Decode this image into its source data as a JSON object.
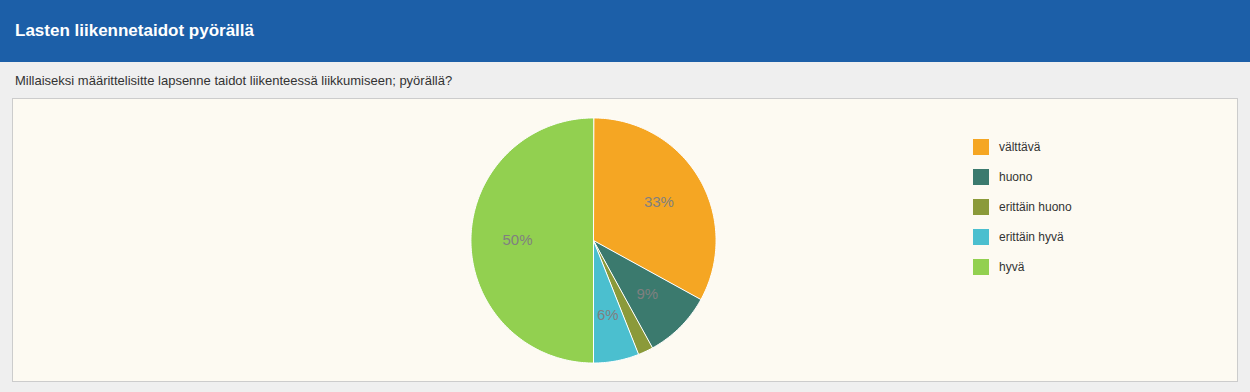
{
  "chart_data": {
    "type": "pie",
    "title": "Lasten liikennetaidot pyörällä",
    "subtitle": "Millaiseksi määrittelisitte lapsenne taidot liikenteessä liikkumiseen; pyörällä?",
    "categories": [
      "välttävä",
      "huono",
      "erittäin huono",
      "erittäin hyvä",
      "hyvä"
    ],
    "values": [
      33,
      9,
      2,
      6,
      50
    ],
    "value_labels": [
      "33%",
      "9%",
      null,
      "6%",
      "50%"
    ],
    "colors": [
      "#F5A623",
      "#3B7A6E",
      "#8B9A3A",
      "#4BBFCF",
      "#92D050"
    ],
    "data_labels": true,
    "legend": "right"
  }
}
